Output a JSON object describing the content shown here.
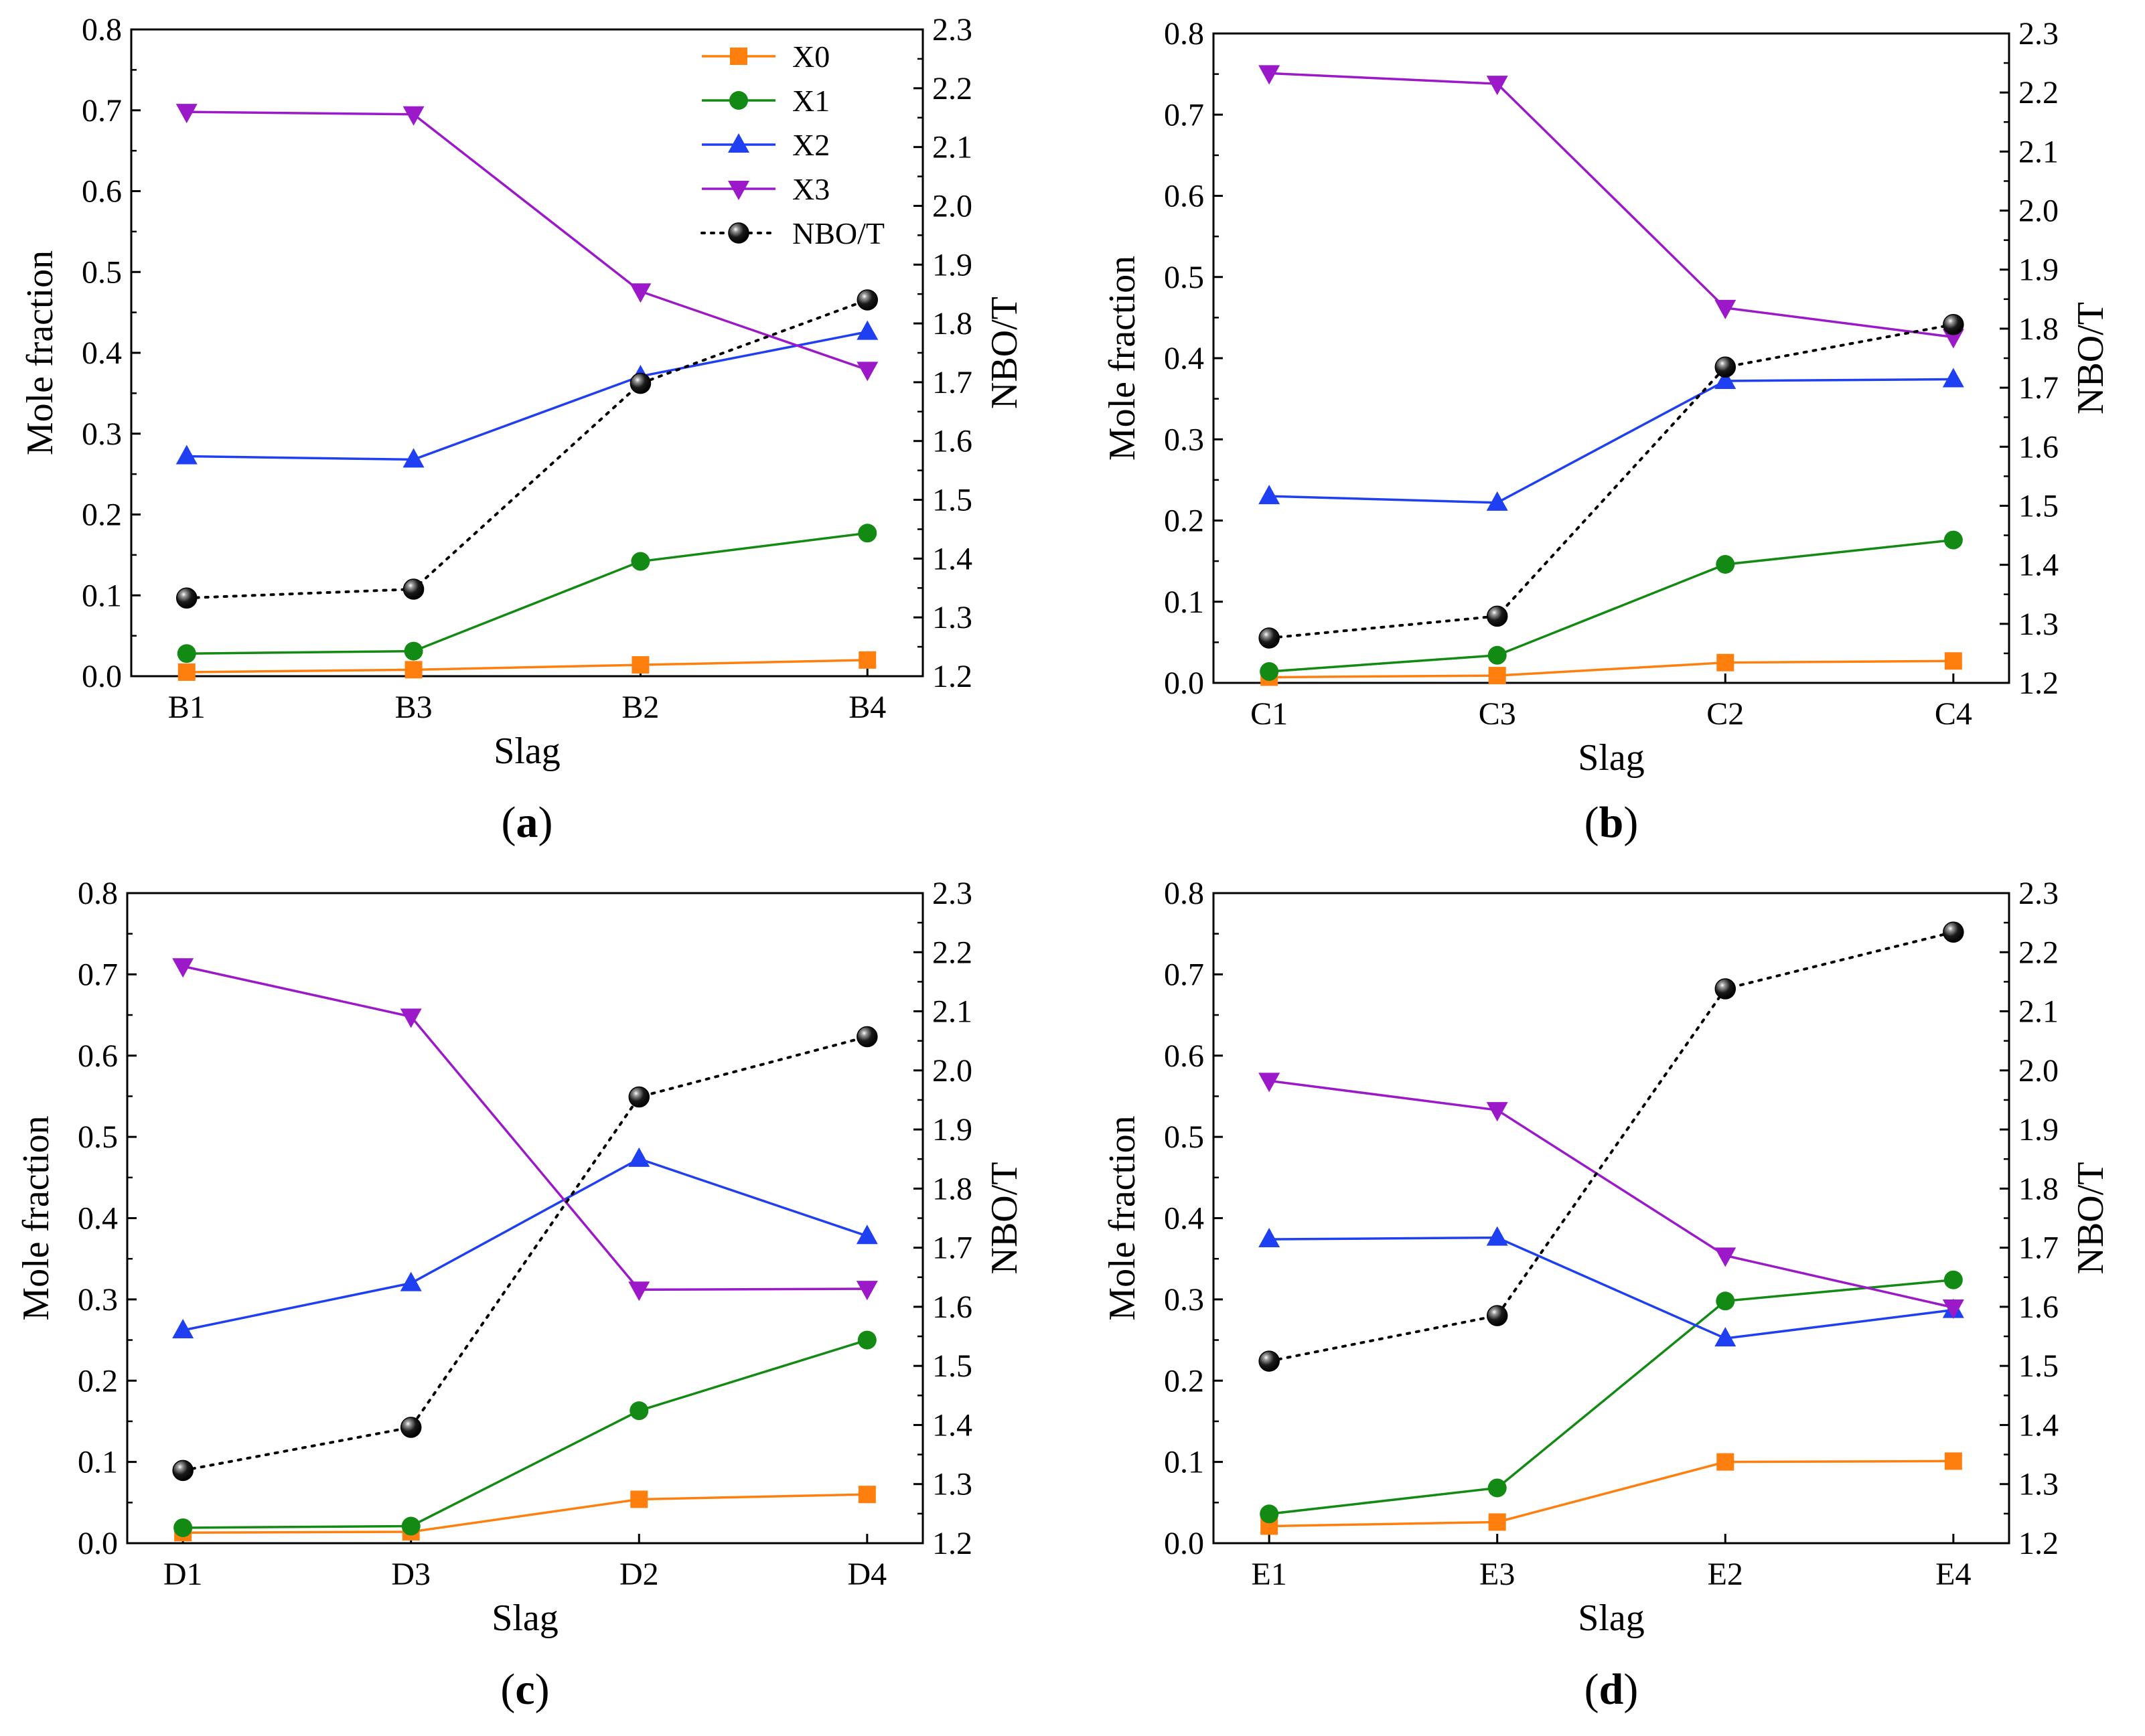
{
  "chart_data": [
    {
      "type": "line",
      "caption_open": "(",
      "caption_letter": "a",
      "caption_close": ")",
      "xlabel": "Slag",
      "ylabel": "Mole fraction",
      "y2label": "NBO/T",
      "categories": [
        "B1",
        "B3",
        "B2",
        "B4"
      ],
      "ylim": [
        0,
        0.8
      ],
      "y2lim": [
        1.2,
        2.3
      ],
      "yticks": [
        "0.0",
        "0.1",
        "0.2",
        "0.3",
        "0.4",
        "0.5",
        "0.6",
        "0.7",
        "0.8"
      ],
      "y2ticks": [
        "1.2",
        "1.3",
        "1.4",
        "1.5",
        "1.6",
        "1.7",
        "1.8",
        "1.9",
        "2.0",
        "2.1",
        "2.2",
        "2.3"
      ],
      "series": [
        {
          "name": "X0",
          "axis": "left",
          "values": [
            0.005,
            0.008,
            0.014,
            0.02
          ],
          "color": "#ff7f0e",
          "marker": "square",
          "dash": "none"
        },
        {
          "name": "X1",
          "axis": "left",
          "values": [
            0.028,
            0.031,
            0.142,
            0.177
          ],
          "color": "#138a13",
          "marker": "circle",
          "dash": "none"
        },
        {
          "name": "X2",
          "axis": "left",
          "values": [
            0.272,
            0.268,
            0.371,
            0.426
          ],
          "color": "#1f3ff2",
          "marker": "triangle-up",
          "dash": "none"
        },
        {
          "name": "X3",
          "axis": "left",
          "values": [
            0.698,
            0.695,
            0.476,
            0.379
          ],
          "color": "#9b19c9",
          "marker": "triangle-down",
          "dash": "none"
        },
        {
          "name": "NBO/T",
          "axis": "right",
          "values": [
            1.333,
            1.348,
            1.698,
            1.84
          ],
          "color": "#000000",
          "marker": "ball",
          "dash": "dotted"
        }
      ],
      "legend": {
        "show": true,
        "position": "top-right"
      }
    },
    {
      "type": "line",
      "caption_open": "(",
      "caption_letter": "b",
      "caption_close": ")",
      "xlabel": "Slag",
      "ylabel": "Mole fraction",
      "y2label": "NBO/T",
      "categories": [
        "C1",
        "C3",
        "C2",
        "C4"
      ],
      "ylim": [
        0,
        0.8
      ],
      "y2lim": [
        1.2,
        2.3
      ],
      "yticks": [
        "0.0",
        "0.1",
        "0.2",
        "0.3",
        "0.4",
        "0.5",
        "0.6",
        "0.7",
        "0.8"
      ],
      "y2ticks": [
        "1.2",
        "1.3",
        "1.4",
        "1.5",
        "1.6",
        "1.7",
        "1.8",
        "1.9",
        "2.0",
        "2.1",
        "2.2",
        "2.3"
      ],
      "series": [
        {
          "name": "X0",
          "axis": "left",
          "values": [
            0.007,
            0.009,
            0.025,
            0.027
          ],
          "color": "#ff7f0e",
          "marker": "square",
          "dash": "none"
        },
        {
          "name": "X1",
          "axis": "left",
          "values": [
            0.014,
            0.034,
            0.146,
            0.176
          ],
          "color": "#138a13",
          "marker": "circle",
          "dash": "none"
        },
        {
          "name": "X2",
          "axis": "left",
          "values": [
            0.23,
            0.222,
            0.372,
            0.374
          ],
          "color": "#1f3ff2",
          "marker": "triangle-up",
          "dash": "none"
        },
        {
          "name": "X3",
          "axis": "left",
          "values": [
            0.751,
            0.738,
            0.462,
            0.426
          ],
          "color": "#9b19c9",
          "marker": "triangle-down",
          "dash": "none"
        },
        {
          "name": "NBO/T",
          "axis": "right",
          "values": [
            1.276,
            1.313,
            1.735,
            1.807
          ],
          "color": "#000000",
          "marker": "ball",
          "dash": "dotted"
        }
      ],
      "legend": {
        "show": false,
        "position": "top-right"
      }
    },
    {
      "type": "line",
      "caption_open": "(",
      "caption_letter": "c",
      "caption_close": ")",
      "xlabel": "Slag",
      "ylabel": "Mole fraction",
      "y2label": "NBO/T",
      "categories": [
        "D1",
        "D3",
        "D2",
        "D4"
      ],
      "ylim": [
        0,
        0.8
      ],
      "y2lim": [
        1.2,
        2.3
      ],
      "yticks": [
        "0.0",
        "0.1",
        "0.2",
        "0.3",
        "0.4",
        "0.5",
        "0.6",
        "0.7",
        "0.8"
      ],
      "y2ticks": [
        "1.2",
        "1.3",
        "1.4",
        "1.5",
        "1.6",
        "1.7",
        "1.8",
        "1.9",
        "2.0",
        "2.1",
        "2.2",
        "2.3"
      ],
      "series": [
        {
          "name": "X0",
          "axis": "left",
          "values": [
            0.013,
            0.014,
            0.054,
            0.06
          ],
          "color": "#ff7f0e",
          "marker": "square",
          "dash": "none"
        },
        {
          "name": "X1",
          "axis": "left",
          "values": [
            0.019,
            0.021,
            0.163,
            0.25
          ],
          "color": "#138a13",
          "marker": "circle",
          "dash": "none"
        },
        {
          "name": "X2",
          "axis": "left",
          "values": [
            0.262,
            0.32,
            0.473,
            0.378
          ],
          "color": "#1f3ff2",
          "marker": "triangle-up",
          "dash": "none"
        },
        {
          "name": "X3",
          "axis": "left",
          "values": [
            0.71,
            0.648,
            0.312,
            0.313
          ],
          "color": "#9b19c9",
          "marker": "triangle-down",
          "dash": "none"
        },
        {
          "name": "NBO/T",
          "axis": "right",
          "values": [
            1.323,
            1.396,
            1.955,
            2.057
          ],
          "color": "#000000",
          "marker": "ball",
          "dash": "dotted"
        }
      ],
      "legend": {
        "show": false,
        "position": "top-right"
      }
    },
    {
      "type": "line",
      "caption_open": "(",
      "caption_letter": "d",
      "caption_close": ")",
      "xlabel": "Slag",
      "ylabel": "Mole fraction",
      "y2label": "NBO/T",
      "categories": [
        "E1",
        "E3",
        "E2",
        "E4"
      ],
      "ylim": [
        0,
        0.8
      ],
      "y2lim": [
        1.2,
        2.3
      ],
      "yticks": [
        "0.0",
        "0.1",
        "0.2",
        "0.3",
        "0.4",
        "0.5",
        "0.6",
        "0.7",
        "0.8"
      ],
      "y2ticks": [
        "1.2",
        "1.3",
        "1.4",
        "1.5",
        "1.6",
        "1.7",
        "1.8",
        "1.9",
        "2.0",
        "2.1",
        "2.2",
        "2.3"
      ],
      "series": [
        {
          "name": "X0",
          "axis": "left",
          "values": [
            0.021,
            0.026,
            0.1,
            0.101
          ],
          "color": "#ff7f0e",
          "marker": "square",
          "dash": "none"
        },
        {
          "name": "X1",
          "axis": "left",
          "values": [
            0.036,
            0.068,
            0.298,
            0.324
          ],
          "color": "#138a13",
          "marker": "circle",
          "dash": "none"
        },
        {
          "name": "X2",
          "axis": "left",
          "values": [
            0.374,
            0.376,
            0.252,
            0.287
          ],
          "color": "#1f3ff2",
          "marker": "triangle-up",
          "dash": "none"
        },
        {
          "name": "X3",
          "axis": "left",
          "values": [
            0.569,
            0.533,
            0.354,
            0.29
          ],
          "color": "#9b19c9",
          "marker": "triangle-down",
          "dash": "none"
        },
        {
          "name": "NBO/T",
          "axis": "right",
          "values": [
            1.508,
            1.585,
            2.138,
            2.234
          ],
          "color": "#000000",
          "marker": "ball",
          "dash": "dotted"
        }
      ],
      "legend": {
        "show": false,
        "position": "top-right"
      }
    }
  ]
}
